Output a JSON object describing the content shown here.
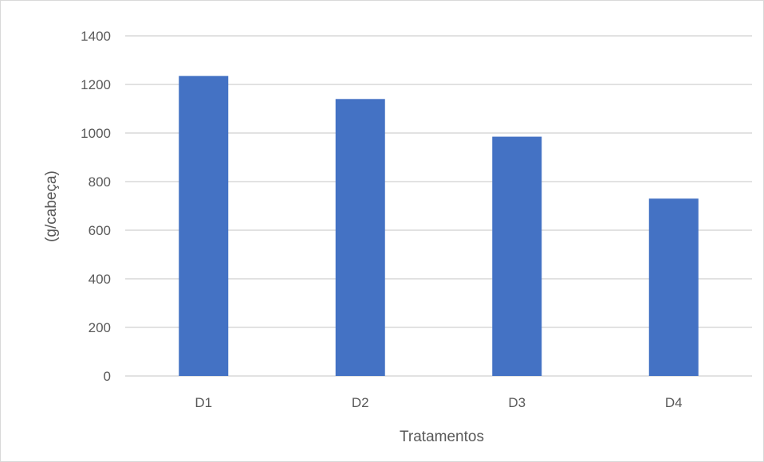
{
  "chart_data": {
    "type": "bar",
    "title": "",
    "xlabel": "Tratamentos",
    "ylabel": "(g/cabeça)",
    "categories": [
      "D1",
      "D2",
      "D3",
      "D4"
    ],
    "values": [
      1235,
      1140,
      985,
      730
    ],
    "ylim": [
      0,
      1400
    ],
    "yticks": [
      0,
      200,
      400,
      600,
      800,
      1000,
      1200,
      1400
    ],
    "ytick_labels": [
      "0",
      "200",
      "400",
      "600",
      "800",
      "1000",
      "1200",
      "1400"
    ],
    "grid": true,
    "legend": "none",
    "bar_color": "#4472c4",
    "grid_color": "#d9d9d9"
  }
}
